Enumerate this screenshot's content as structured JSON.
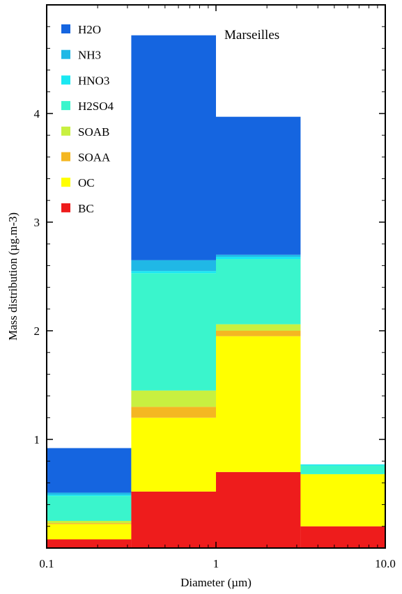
{
  "chart_data": {
    "type": "bar",
    "subtype": "stacked-histogram",
    "title": "",
    "annotation": "Marseilles",
    "xlabel": "Diameter (µm)",
    "ylabel": "Mass distribution (µg.m-3)",
    "x_scale": "log",
    "xlim": [
      0.1,
      10.0
    ],
    "ylim": [
      0,
      5
    ],
    "x_ticks": [
      {
        "value": 0.1,
        "label": "0.1"
      },
      {
        "value": 1,
        "label": "1"
      },
      {
        "value": 10,
        "label": "10.0"
      }
    ],
    "y_ticks": [
      {
        "value": 1,
        "label": "1"
      },
      {
        "value": 2,
        "label": "2"
      },
      {
        "value": 3,
        "label": "3"
      },
      {
        "value": 4,
        "label": "4"
      }
    ],
    "legend_position": "top-left",
    "bins": [
      {
        "x0": 0.1,
        "x1": 0.316
      },
      {
        "x0": 0.316,
        "x1": 1.0
      },
      {
        "x0": 1.0,
        "x1": 3.16
      },
      {
        "x0": 3.16,
        "x1": 10.0
      }
    ],
    "series": [
      {
        "name": "BC",
        "color": "#ee1c1c",
        "values": [
          0.08,
          0.52,
          0.7,
          0.2
        ]
      },
      {
        "name": "OC",
        "color": "#ffff00",
        "values": [
          0.14,
          0.68,
          1.25,
          0.48
        ]
      },
      {
        "name": "SOAA",
        "color": "#f4b722",
        "values": [
          0.01,
          0.1,
          0.05,
          0.0
        ]
      },
      {
        "name": "SOAB",
        "color": "#c8f040",
        "values": [
          0.02,
          0.15,
          0.06,
          0.0
        ]
      },
      {
        "name": "H2SO4",
        "color": "#3af5cc",
        "values": [
          0.23,
          1.08,
          0.6,
          0.08
        ]
      },
      {
        "name": "HNO3",
        "color": "#1ae8f2",
        "values": [
          0.01,
          0.02,
          0.02,
          0.01
        ]
      },
      {
        "name": "NH3",
        "color": "#20b8e6",
        "values": [
          0.02,
          0.1,
          0.02,
          0.0
        ]
      },
      {
        "name": "H2O",
        "color": "#1565e0",
        "values": [
          0.41,
          2.07,
          1.27,
          0.0
        ]
      }
    ],
    "legend": [
      {
        "name": "H2O",
        "color": "#1565e0"
      },
      {
        "name": "NH3",
        "color": "#20b8e6"
      },
      {
        "name": "HNO3",
        "color": "#1ae8f2"
      },
      {
        "name": "H2SO4",
        "color": "#3af5cc"
      },
      {
        "name": "SOAB",
        "color": "#c8f040"
      },
      {
        "name": "SOAA",
        "color": "#f4b722"
      },
      {
        "name": "OC",
        "color": "#ffff00"
      },
      {
        "name": "BC",
        "color": "#ee1c1c"
      }
    ]
  }
}
